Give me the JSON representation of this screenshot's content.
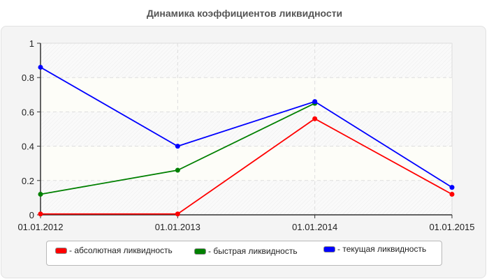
{
  "title": "Динамика коэффициентов ликвидности",
  "chart_data": {
    "type": "line",
    "title": "Динамика коэффициентов ликвидности",
    "xlabel": "",
    "ylabel": "",
    "categories": [
      "01.01.2012",
      "01.01.2013",
      "01.01.2014",
      "01.01.2015"
    ],
    "ylim": [
      0,
      1
    ],
    "yticks": [
      "0",
      "0.2",
      "0.4",
      "0.6",
      "0.8",
      "1"
    ],
    "grid": true,
    "legend_position": "bottom",
    "series": [
      {
        "name": "абсолютная ликвидность",
        "color": "#ff0000",
        "values": [
          0.005,
          0.005,
          0.56,
          0.12
        ]
      },
      {
        "name": "быстрая ликвидность",
        "color": "#008000",
        "values": [
          0.12,
          0.26,
          0.65,
          null
        ]
      },
      {
        "name": "текущая ликвидность",
        "color": "#0000ff",
        "values": [
          0.86,
          0.4,
          0.66,
          0.16
        ]
      }
    ]
  },
  "legend": {
    "items": [
      {
        "label": "- абсолютная ликвидность",
        "color": "#ff0000"
      },
      {
        "label": "- быстрая ликвидность",
        "color": "#008000"
      },
      {
        "label": "- текущая ликвидность",
        "color": "#0000ff"
      }
    ]
  }
}
